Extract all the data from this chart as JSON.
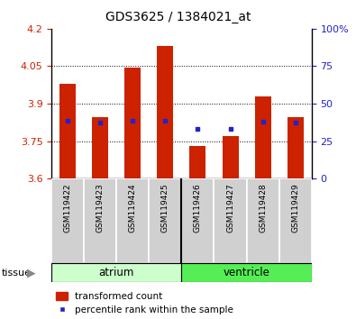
{
  "title": "GDS3625 / 1384021_at",
  "samples": [
    "GSM119422",
    "GSM119423",
    "GSM119424",
    "GSM119425",
    "GSM119426",
    "GSM119427",
    "GSM119428",
    "GSM119429"
  ],
  "red_values": [
    3.98,
    3.845,
    4.045,
    4.13,
    3.73,
    3.77,
    3.93,
    3.845
  ],
  "blue_values": [
    3.832,
    3.825,
    3.832,
    3.832,
    3.798,
    3.8,
    3.828,
    3.825
  ],
  "ymin": 3.6,
  "ymax": 4.2,
  "yticks_left": [
    3.6,
    3.75,
    3.9,
    4.05,
    4.2
  ],
  "yticks_right": [
    0,
    25,
    50,
    75,
    100
  ],
  "bar_color": "#cc2200",
  "dot_color": "#2222cc",
  "atrium_color": "#ccffcc",
  "ventricle_color": "#55ee55",
  "label_bg_color": "#d0d0d0",
  "tissue_label": "tissue",
  "left_tick_color": "#cc2200",
  "right_tick_color": "#2222cc",
  "bar_width": 0.5,
  "baseline": 3.6,
  "legend_items": [
    "transformed count",
    "percentile rank within the sample"
  ]
}
